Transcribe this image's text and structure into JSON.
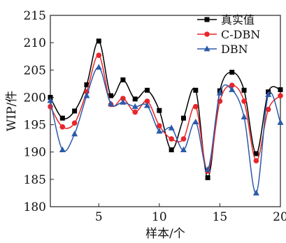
{
  "chart_data": {
    "type": "line",
    "xlabel": "样本/个",
    "ylabel": "WIP/件",
    "xlim": [
      1,
      20
    ],
    "ylim": [
      180,
      215
    ],
    "xticks": [
      5,
      10,
      15,
      20
    ],
    "yticks": [
      180,
      185,
      190,
      195,
      200,
      205,
      210,
      215
    ],
    "grid": false,
    "legend_position": "top-right",
    "x": [
      1,
      2,
      3,
      4,
      5,
      6,
      7,
      8,
      9,
      10,
      11,
      12,
      13,
      14,
      15,
      16,
      17,
      18,
      19,
      20
    ],
    "series": [
      {
        "name": "真实值",
        "color": "#000000",
        "marker": "square",
        "values": [
          200.0,
          196.2,
          197.5,
          202.3,
          210.3,
          200.3,
          203.2,
          199.7,
          201.3,
          197.6,
          190.4,
          196.2,
          201.3,
          185.3,
          201.2,
          204.6,
          201.3,
          189.7,
          201.0,
          201.4
        ]
      },
      {
        "name": "C-DBN",
        "color": "#e8262b",
        "marker": "circle",
        "values": [
          198.3,
          194.6,
          195.3,
          201.0,
          207.7,
          198.7,
          199.8,
          197.3,
          199.3,
          194.8,
          192.4,
          192.4,
          198.3,
          186.5,
          199.3,
          202.2,
          199.3,
          188.4,
          197.8,
          200.3
        ]
      },
      {
        "name": "DBN",
        "color": "#2b5aa8",
        "marker": "triangle",
        "values": [
          199.4,
          190.4,
          193.3,
          200.3,
          205.5,
          198.8,
          199.1,
          198.3,
          198.5,
          193.8,
          194.4,
          190.4,
          195.5,
          186.8,
          200.8,
          201.4,
          196.4,
          182.5,
          200.5,
          195.4
        ]
      }
    ]
  }
}
